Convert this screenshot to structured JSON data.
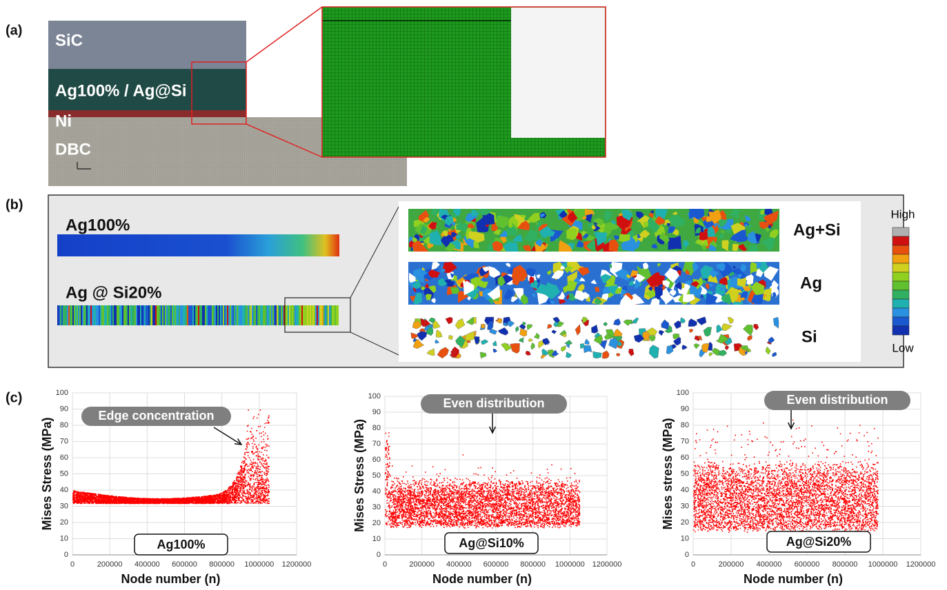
{
  "panels": {
    "a": "(a)",
    "b": "(b)",
    "c": "(c)"
  },
  "layers": [
    "SiC",
    "Ag100% / Ag@Si",
    "Ni",
    "DBC"
  ],
  "model_labels": [
    "Ag100%",
    "Ag @ Si20%"
  ],
  "zoom_labels": [
    "Ag+Si",
    "Ag",
    "Si"
  ],
  "colorbar": {
    "high": "High",
    "low": "Low"
  },
  "chart_data": [
    {
      "type": "scatter",
      "xlabel": "Node number (n)",
      "ylabel": "Mises Stress (MPa)",
      "annotation": "Edge concentration",
      "label": "Ag100%",
      "color": "#ff0000",
      "xlim": [
        0,
        1200000
      ],
      "xticks": [
        0,
        200000,
        400000,
        600000,
        800000,
        1000000,
        1200000
      ],
      "ylim": [
        0,
        100
      ],
      "yticks": [
        0,
        10,
        20,
        30,
        40,
        50,
        60,
        70,
        80,
        90,
        100
      ],
      "grid": true
    },
    {
      "type": "scatter",
      "xlabel": "Node number (n)",
      "ylabel": "Mises Stress (MPa)",
      "annotation": "Even distribution",
      "label": "Ag@Si10%",
      "color": "#ff0000",
      "xlim": [
        0,
        1200000
      ],
      "xticks": [
        0,
        200000,
        400000,
        600000,
        800000,
        1000000,
        1200000
      ],
      "ylim": [
        0,
        100
      ],
      "yticks": [
        0,
        10,
        20,
        30,
        40,
        50,
        60,
        70,
        80,
        90,
        100
      ],
      "grid": true
    },
    {
      "type": "scatter",
      "xlabel": "Node number (n)",
      "ylabel": "Mises stress (MPa)",
      "annotation": "Even distribution",
      "label": "Ag@Si20%",
      "color": "#ff0000",
      "xlim": [
        0,
        1200000
      ],
      "xticks": [
        0,
        200000,
        400000,
        600000,
        800000,
        1000000,
        1200000
      ],
      "ylim": [
        0,
        100
      ],
      "yticks": [
        0,
        10,
        20,
        30,
        40,
        50,
        60,
        70,
        80,
        90,
        100
      ],
      "grid": true
    }
  ]
}
